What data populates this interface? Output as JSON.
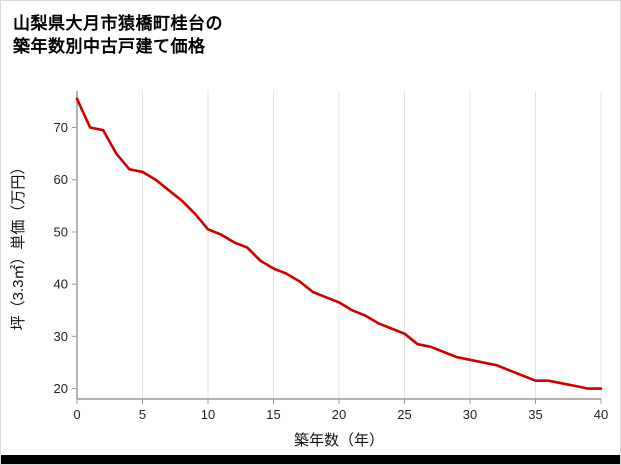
{
  "page": {
    "title_line1": "山梨県大月市猿橋町桂台の",
    "title_line2": "築年数別中古戸建て価格"
  },
  "chart_data": {
    "type": "line",
    "title": "山梨県大月市猿橋町桂台の築年数別中古戸建て価格",
    "xlabel": "築年数（年）",
    "ylabel": "坪（3.3㎡）単価（万円）",
    "x": [
      0,
      1,
      2,
      3,
      4,
      5,
      6,
      7,
      8,
      9,
      10,
      11,
      12,
      13,
      14,
      15,
      16,
      17,
      18,
      19,
      20,
      21,
      22,
      23,
      24,
      25,
      26,
      27,
      28,
      29,
      30,
      31,
      32,
      33,
      34,
      35,
      36,
      37,
      38,
      39,
      40
    ],
    "y": [
      75.5,
      70,
      69.5,
      65,
      62,
      61.5,
      60,
      58,
      56,
      53.5,
      50.5,
      49.5,
      48,
      47,
      44.5,
      43,
      42,
      40.5,
      38.5,
      37.5,
      36.5,
      35,
      34,
      32.5,
      31.5,
      30.5,
      28.5,
      28,
      27,
      26,
      25.5,
      25,
      24.5,
      23.5,
      22.5,
      21.5,
      21.5,
      21,
      20.5,
      20,
      20
    ],
    "xlim": [
      0,
      40
    ],
    "ylim": [
      18,
      77
    ],
    "x_ticks": [
      0,
      5,
      10,
      15,
      20,
      25,
      30,
      35,
      40
    ],
    "y_ticks": [
      20,
      30,
      40,
      50,
      60,
      70
    ],
    "line_color": "#cc0000",
    "grid_color": "#e3e3e3",
    "axis_color": "#9b9b9b",
    "tick_text_color": "#222222",
    "grid": "vertical-only",
    "legend": "none"
  }
}
